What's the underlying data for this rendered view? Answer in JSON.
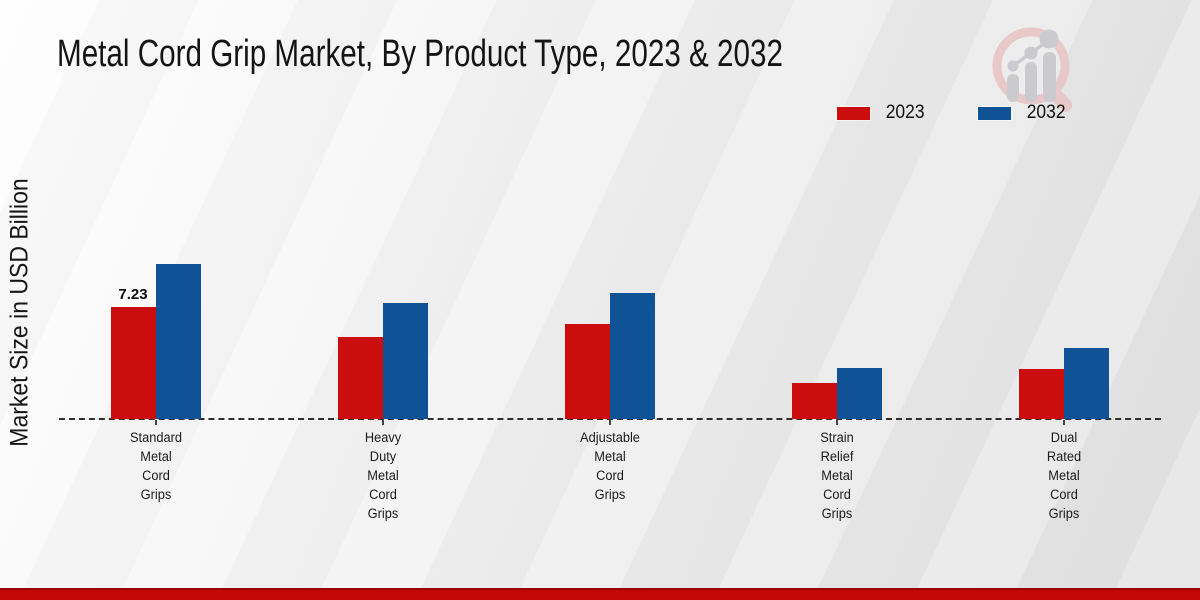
{
  "page": {
    "background_from": "#fefefe",
    "background_to": "#e2e2e2"
  },
  "chart_data": {
    "type": "bar",
    "title": "Metal Cord Grip Market, By Product Type, 2023 & 2032",
    "ylabel": "Market Size in USD Billion",
    "xlabel": "",
    "categories": [
      "Standard Metal Cord Grips",
      "Heavy Duty Metal Cord Grips",
      "Adjustable Metal Cord Grips",
      "Strain Relief Metal Cord Grips",
      "Dual Rated Metal Cord Grips"
    ],
    "category_lines": [
      [
        "Standard",
        "Metal",
        "Cord",
        "Grips"
      ],
      [
        "Heavy",
        "Duty",
        "Metal",
        "Cord",
        "Grips"
      ],
      [
        "Adjustable",
        "Metal",
        "Cord",
        "Grips"
      ],
      [
        "Strain",
        "Relief",
        "Metal",
        "Cord",
        "Grips"
      ],
      [
        "Dual",
        "Rated",
        "Metal",
        "Cord",
        "Grips"
      ]
    ],
    "series": [
      {
        "name": "2023",
        "color": "#cb0d0e",
        "values": [
          7.23,
          5.3,
          6.1,
          2.3,
          3.2
        ]
      },
      {
        "name": "2032",
        "color": "#105296",
        "values": [
          10.0,
          7.5,
          8.1,
          3.3,
          4.6
        ]
      }
    ],
    "bar_labels": [
      {
        "series_index": 0,
        "category_index": 0,
        "text": "7.23"
      }
    ],
    "ylim": [
      0,
      10.5
    ],
    "grid": false,
    "legend_position": "top-right",
    "baseline_style": "dashed"
  },
  "logo": {
    "name": "magnifier-bar-chart-watermark",
    "ring_color": "#e8c7c8",
    "glyph_color": "#c9c9ce"
  },
  "footer": {
    "bar_color": "#c30707"
  }
}
